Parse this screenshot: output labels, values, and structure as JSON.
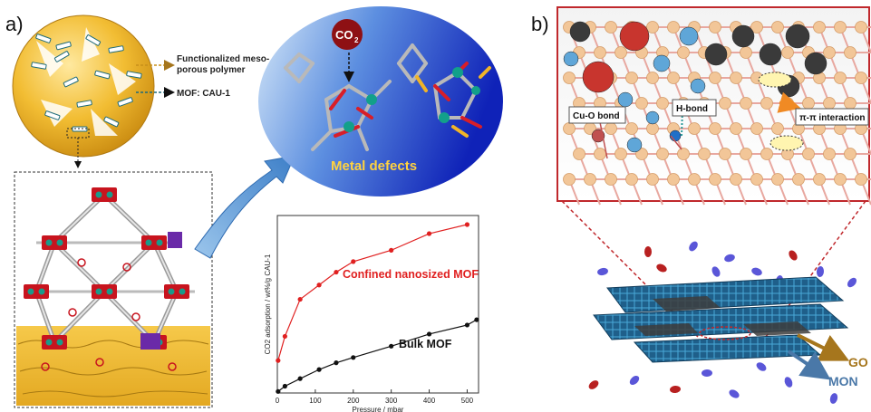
{
  "panel_a": {
    "label": "a)",
    "callouts": {
      "polymer": "Functionalized meso-porous polymer",
      "polymer_line1": "Functionalized meso-",
      "polymer_line2": "porous polymer",
      "mof": "MOF: CAU-1"
    },
    "bubble": {
      "co2_label": "CO",
      "co2_sub": "2",
      "caption": "Metal defects"
    }
  },
  "panel_b": {
    "label": "b)",
    "annotations": {
      "cu_o": "Cu-O bond",
      "h_bond": "H-bond",
      "pi_pi": "π-π interaction"
    },
    "legend": {
      "go": "GO",
      "mon": "MON"
    }
  },
  "colors": {
    "confined": "#e02020",
    "bulk": "#111111",
    "gold": "#f0b428",
    "blue_bubble": "#1535c8",
    "zoom_frame": "#c0282c",
    "go_arrow": "#a6761d",
    "mon_arrow": "#4a78a8"
  },
  "chart_data": {
    "type": "line",
    "xlabel": "Pressure / mbar",
    "ylabel": "CO2 adsorption / wt%/g CAU-1",
    "xlim": [
      0,
      530
    ],
    "ylim": [
      0,
      23.5
    ],
    "xticks": [
      0,
      100,
      200,
      300,
      400,
      500
    ],
    "series": [
      {
        "name": "Confined nanosized MOF",
        "x": [
          2,
          20,
          60,
          110,
          155,
          200,
          300,
          400,
          500
        ],
        "y": [
          4.3,
          7.5,
          12.4,
          14.3,
          16.0,
          17.4,
          18.9,
          21.1,
          22.3
        ]
      },
      {
        "name": "Bulk MOF",
        "x": [
          2,
          20,
          60,
          110,
          155,
          200,
          300,
          400,
          500,
          525
        ],
        "y": [
          0.2,
          0.9,
          1.9,
          3.1,
          4.0,
          4.7,
          6.2,
          7.8,
          9.0,
          9.7
        ]
      }
    ]
  }
}
